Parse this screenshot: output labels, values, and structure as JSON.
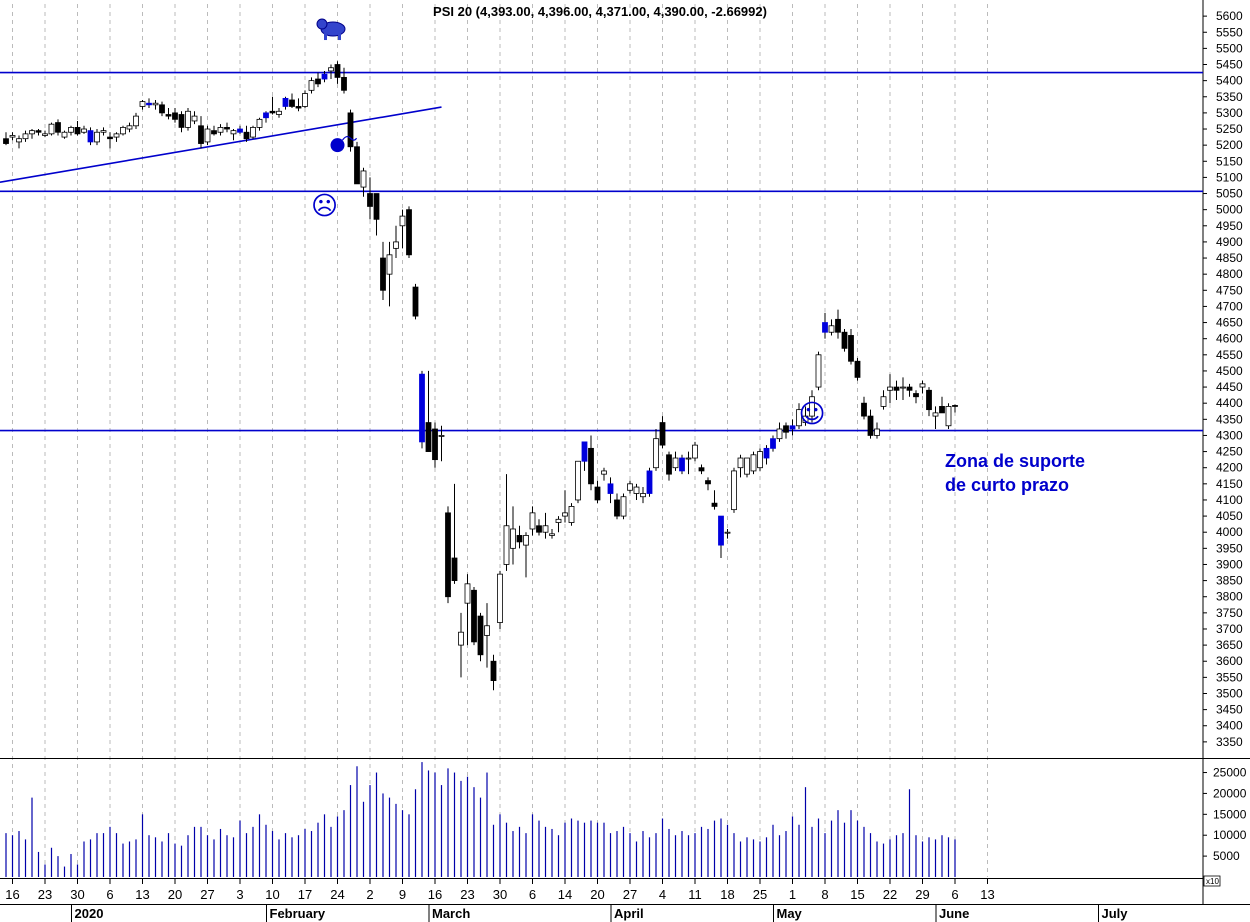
{
  "chart_data": {
    "type": "candlestick",
    "title": "PSI 20 (4,393.00, 4,396.00, 4,371.00, 4,390.00, -2.66992)",
    "price_axis": {
      "ylim": [
        3300,
        5650
      ],
      "ticks": [
        3350,
        3400,
        3450,
        3500,
        3550,
        3600,
        3650,
        3700,
        3750,
        3800,
        3850,
        3900,
        3950,
        4000,
        4050,
        4100,
        4150,
        4200,
        4250,
        4300,
        4350,
        4400,
        4450,
        4500,
        4550,
        4600,
        4650,
        4700,
        4750,
        4800,
        4850,
        4900,
        4950,
        5000,
        5050,
        5100,
        5150,
        5200,
        5250,
        5300,
        5350,
        5400,
        5450,
        5500,
        5550,
        5600
      ]
    },
    "volume_axis": {
      "ylim": [
        0,
        28000
      ],
      "ticks": [
        5000,
        10000,
        15000,
        20000,
        25000
      ],
      "multiplier_label": "x10"
    },
    "x_tick_labels": [
      "16",
      "23",
      "30",
      "6",
      "13",
      "20",
      "27",
      "3",
      "10",
      "17",
      "24",
      "2",
      "9",
      "16",
      "23",
      "30",
      "6",
      "14",
      "20",
      "27",
      "4",
      "11",
      "18",
      "25",
      "1",
      "8",
      "15",
      "22",
      "29",
      "6",
      "13"
    ],
    "month_labels": [
      "2020",
      "February",
      "March",
      "April",
      "May",
      "June",
      "July"
    ],
    "horizontal_levels": [
      5425,
      5057,
      4315
    ],
    "trendline": {
      "from": {
        "bar": 0,
        "price": 5085
      },
      "to": {
        "bar": 67,
        "price": 5318
      }
    },
    "annotations": [
      {
        "text": "Zona de suporte",
        "kind": "label"
      },
      {
        "text": "de curto prazo",
        "kind": "label"
      }
    ],
    "icons": [
      {
        "name": "bear-icon",
        "bar": 50,
        "price": 5560
      },
      {
        "name": "bomb-icon",
        "bar": 51,
        "price": 5200
      },
      {
        "name": "sad-face-icon",
        "bar": 49,
        "price": 5010
      },
      {
        "name": "happy-face-icon",
        "bar": 124,
        "price": 4365
      }
    ],
    "colors": {
      "up": "#ffffff",
      "down": "#000000",
      "highlight": "#0000dd",
      "lines": "#0000cc",
      "volume": "#0000aa",
      "grid": "#bbbbbb"
    },
    "series": [
      {
        "o": 5220,
        "h": 5240,
        "l": 5200,
        "c": 5205,
        "v": 10500
      },
      {
        "o": 5225,
        "h": 5240,
        "l": 5215,
        "c": 5230,
        "v": 10000
      },
      {
        "o": 5210,
        "h": 5230,
        "l": 5190,
        "c": 5220,
        "v": 11000
      },
      {
        "o": 5220,
        "h": 5245,
        "l": 5210,
        "c": 5235,
        "v": 9000
      },
      {
        "o": 5235,
        "h": 5250,
        "l": 5220,
        "c": 5245,
        "v": 19000
      },
      {
        "o": 5245,
        "h": 5250,
        "l": 5230,
        "c": 5240,
        "v": 6000
      },
      {
        "o": 5230,
        "h": 5245,
        "l": 5225,
        "c": 5235,
        "v": 3000
      },
      {
        "o": 5235,
        "h": 5270,
        "l": 5230,
        "c": 5265,
        "v": 7000
      },
      {
        "o": 5270,
        "h": 5280,
        "l": 5230,
        "c": 5240,
        "v": 5000
      },
      {
        "o": 5225,
        "h": 5245,
        "l": 5220,
        "c": 5240,
        "v": 2500
      },
      {
        "o": 5240,
        "h": 5260,
        "l": 5230,
        "c": 5255,
        "v": 5500
      },
      {
        "o": 5255,
        "h": 5275,
        "l": 5230,
        "c": 5235,
        "v": 3000
      },
      {
        "o": 5240,
        "h": 5260,
        "l": 5235,
        "c": 5250,
        "v": 8500
      },
      {
        "o": 5245,
        "h": 5255,
        "l": 5200,
        "c": 5210,
        "v": 9000
      },
      {
        "o": 5210,
        "h": 5250,
        "l": 5200,
        "c": 5240,
        "v": 10500
      },
      {
        "o": 5240,
        "h": 5255,
        "l": 5230,
        "c": 5245,
        "v": 10500
      },
      {
        "o": 5225,
        "h": 5240,
        "l": 5190,
        "c": 5220,
        "v": 12000
      },
      {
        "o": 5225,
        "h": 5240,
        "l": 5210,
        "c": 5235,
        "v": 10500
      },
      {
        "o": 5235,
        "h": 5260,
        "l": 5230,
        "c": 5255,
        "v": 8000
      },
      {
        "o": 5250,
        "h": 5270,
        "l": 5240,
        "c": 5260,
        "v": 8500
      },
      {
        "o": 5260,
        "h": 5300,
        "l": 5250,
        "c": 5290,
        "v": 9000
      },
      {
        "o": 5320,
        "h": 5340,
        "l": 5310,
        "c": 5335,
        "v": 15000
      },
      {
        "o": 5330,
        "h": 5345,
        "l": 5315,
        "c": 5325,
        "v": 10000
      },
      {
        "o": 5325,
        "h": 5340,
        "l": 5310,
        "c": 5330,
        "v": 9500
      },
      {
        "o": 5325,
        "h": 5335,
        "l": 5290,
        "c": 5300,
        "v": 8500
      },
      {
        "o": 5295,
        "h": 5315,
        "l": 5280,
        "c": 5290,
        "v": 10500
      },
      {
        "o": 5300,
        "h": 5315,
        "l": 5270,
        "c": 5280,
        "v": 8000
      },
      {
        "o": 5295,
        "h": 5305,
        "l": 5240,
        "c": 5255,
        "v": 7500
      },
      {
        "o": 5255,
        "h": 5315,
        "l": 5245,
        "c": 5305,
        "v": 10000
      },
      {
        "o": 5275,
        "h": 5305,
        "l": 5265,
        "c": 5290,
        "v": 12000
      },
      {
        "o": 5260,
        "h": 5290,
        "l": 5190,
        "c": 5205,
        "v": 12000
      },
      {
        "o": 5210,
        "h": 5260,
        "l": 5200,
        "c": 5250,
        "v": 10000
      },
      {
        "o": 5245,
        "h": 5260,
        "l": 5230,
        "c": 5235,
        "v": 9000
      },
      {
        "o": 5240,
        "h": 5265,
        "l": 5230,
        "c": 5255,
        "v": 11500
      },
      {
        "o": 5255,
        "h": 5270,
        "l": 5240,
        "c": 5250,
        "v": 10000
      },
      {
        "o": 5235,
        "h": 5250,
        "l": 5215,
        "c": 5245,
        "v": 9500
      },
      {
        "o": 5250,
        "h": 5260,
        "l": 5235,
        "c": 5240,
        "v": 13500
      },
      {
        "o": 5240,
        "h": 5260,
        "l": 5210,
        "c": 5220,
        "v": 10500
      },
      {
        "o": 5225,
        "h": 5260,
        "l": 5220,
        "c": 5255,
        "v": 12000
      },
      {
        "o": 5255,
        "h": 5285,
        "l": 5245,
        "c": 5280,
        "v": 15000
      },
      {
        "o": 5285,
        "h": 5305,
        "l": 5270,
        "c": 5300,
        "v": 12500
      },
      {
        "o": 5305,
        "h": 5350,
        "l": 5295,
        "c": 5300,
        "v": 11000
      },
      {
        "o": 5295,
        "h": 5315,
        "l": 5285,
        "c": 5305,
        "v": 9000
      },
      {
        "o": 5320,
        "h": 5350,
        "l": 5310,
        "c": 5345,
        "v": 10500
      },
      {
        "o": 5340,
        "h": 5360,
        "l": 5315,
        "c": 5320,
        "v": 9500
      },
      {
        "o": 5320,
        "h": 5345,
        "l": 5305,
        "c": 5315,
        "v": 10000
      },
      {
        "o": 5320,
        "h": 5370,
        "l": 5315,
        "c": 5360,
        "v": 11500
      },
      {
        "o": 5370,
        "h": 5410,
        "l": 5360,
        "c": 5400,
        "v": 11000
      },
      {
        "o": 5405,
        "h": 5425,
        "l": 5380,
        "c": 5390,
        "v": 13000
      },
      {
        "o": 5405,
        "h": 5430,
        "l": 5395,
        "c": 5420,
        "v": 15000
      },
      {
        "o": 5430,
        "h": 5450,
        "l": 5405,
        "c": 5440,
        "v": 12000
      },
      {
        "o": 5450,
        "h": 5460,
        "l": 5390,
        "c": 5410,
        "v": 14500
      },
      {
        "o": 5410,
        "h": 5440,
        "l": 5360,
        "c": 5370,
        "v": 16000
      },
      {
        "o": 5300,
        "h": 5310,
        "l": 5180,
        "c": 5195,
        "v": 22000
      },
      {
        "o": 5195,
        "h": 5210,
        "l": 5080,
        "c": 5080,
        "v": 26500
      },
      {
        "o": 5070,
        "h": 5130,
        "l": 5040,
        "c": 5120,
        "v": 18000
      },
      {
        "o": 5050,
        "h": 5100,
        "l": 4970,
        "c": 5010,
        "v": 22000
      },
      {
        "o": 5050,
        "h": 5050,
        "l": 4920,
        "c": 4970,
        "v": 25000
      },
      {
        "o": 4850,
        "h": 4900,
        "l": 4720,
        "c": 4750,
        "v": 20000
      },
      {
        "o": 4800,
        "h": 4900,
        "l": 4700,
        "c": 4860,
        "v": 19000
      },
      {
        "o": 4880,
        "h": 4950,
        "l": 4850,
        "c": 4900,
        "v": 17500
      },
      {
        "o": 4950,
        "h": 5000,
        "l": 4880,
        "c": 4980,
        "v": 16000
      },
      {
        "o": 5000,
        "h": 5010,
        "l": 4850,
        "c": 4860,
        "v": 15000
      },
      {
        "o": 4760,
        "h": 4770,
        "l": 4660,
        "c": 4670,
        "v": 21000
      },
      {
        "o": 4490,
        "h": 4500,
        "l": 4260,
        "c": 4280,
        "v": 27500
      },
      {
        "o": 4340,
        "h": 4500,
        "l": 4250,
        "c": 4250,
        "v": 25500
      },
      {
        "o": 4320,
        "h": 4340,
        "l": 4200,
        "c": 4225,
        "v": 25000
      },
      {
        "o": 4300,
        "h": 4330,
        "l": 4220,
        "c": 4300,
        "v": 22000
      },
      {
        "o": 4060,
        "h": 4080,
        "l": 3780,
        "c": 3800,
        "v": 26000
      },
      {
        "o": 3920,
        "h": 4150,
        "l": 3840,
        "c": 3850,
        "v": 25000
      },
      {
        "o": 3650,
        "h": 3750,
        "l": 3550,
        "c": 3690,
        "v": 23000
      },
      {
        "o": 3780,
        "h": 3870,
        "l": 3650,
        "c": 3840,
        "v": 24000
      },
      {
        "o": 3820,
        "h": 3830,
        "l": 3650,
        "c": 3660,
        "v": 21500
      },
      {
        "o": 3740,
        "h": 3750,
        "l": 3600,
        "c": 3620,
        "v": 19000
      },
      {
        "o": 3680,
        "h": 3780,
        "l": 3580,
        "c": 3710,
        "v": 25000
      },
      {
        "o": 3600,
        "h": 3620,
        "l": 3510,
        "c": 3540,
        "v": 12500
      },
      {
        "o": 3720,
        "h": 3880,
        "l": 3700,
        "c": 3870,
        "v": 15000
      },
      {
        "o": 3900,
        "h": 4180,
        "l": 3880,
        "c": 4020,
        "v": 13000
      },
      {
        "o": 3950,
        "h": 4080,
        "l": 3900,
        "c": 4010,
        "v": 11000
      },
      {
        "o": 3990,
        "h": 4020,
        "l": 3950,
        "c": 3970,
        "v": 12000
      },
      {
        "o": 3960,
        "h": 4000,
        "l": 3860,
        "c": 3990,
        "v": 10500
      },
      {
        "o": 4010,
        "h": 4080,
        "l": 3990,
        "c": 4060,
        "v": 15000
      },
      {
        "o": 4020,
        "h": 4040,
        "l": 3990,
        "c": 4000,
        "v": 13500
      },
      {
        "o": 4000,
        "h": 4060,
        "l": 3980,
        "c": 4020,
        "v": 12000
      },
      {
        "o": 3990,
        "h": 4010,
        "l": 3980,
        "c": 3995,
        "v": 11500
      },
      {
        "o": 4030,
        "h": 4050,
        "l": 4000,
        "c": 4040,
        "v": 10000
      },
      {
        "o": 4050,
        "h": 4130,
        "l": 4030,
        "c": 4060,
        "v": 13000
      },
      {
        "o": 4030,
        "h": 4090,
        "l": 4020,
        "c": 4080,
        "v": 14000
      },
      {
        "o": 4100,
        "h": 4220,
        "l": 4090,
        "c": 4220,
        "v": 13500
      },
      {
        "o": 4220,
        "h": 4280,
        "l": 4190,
        "c": 4280,
        "v": 13000
      },
      {
        "o": 4260,
        "h": 4300,
        "l": 4130,
        "c": 4150,
        "v": 13500
      },
      {
        "o": 4140,
        "h": 4160,
        "l": 4090,
        "c": 4100,
        "v": 13000
      },
      {
        "o": 4180,
        "h": 4200,
        "l": 4160,
        "c": 4190,
        "v": 13000
      },
      {
        "o": 4150,
        "h": 4170,
        "l": 4090,
        "c": 4120,
        "v": 10500
      },
      {
        "o": 4100,
        "h": 4120,
        "l": 4040,
        "c": 4050,
        "v": 11000
      },
      {
        "o": 4050,
        "h": 4120,
        "l": 4040,
        "c": 4110,
        "v": 12000
      },
      {
        "o": 4130,
        "h": 4160,
        "l": 4120,
        "c": 4150,
        "v": 10500
      },
      {
        "o": 4120,
        "h": 4150,
        "l": 4100,
        "c": 4140,
        "v": 8500
      },
      {
        "o": 4110,
        "h": 4140,
        "l": 4090,
        "c": 4120,
        "v": 11000
      },
      {
        "o": 4120,
        "h": 4200,
        "l": 4110,
        "c": 4190,
        "v": 9500
      },
      {
        "o": 4200,
        "h": 4320,
        "l": 4190,
        "c": 4290,
        "v": 10500
      },
      {
        "o": 4340,
        "h": 4360,
        "l": 4260,
        "c": 4270,
        "v": 14000
      },
      {
        "o": 4240,
        "h": 4250,
        "l": 4160,
        "c": 4180,
        "v": 11500
      },
      {
        "o": 4200,
        "h": 4250,
        "l": 4190,
        "c": 4230,
        "v": 10000
      },
      {
        "o": 4230,
        "h": 4240,
        "l": 4180,
        "c": 4190,
        "v": 11000
      },
      {
        "o": 4230,
        "h": 4250,
        "l": 4180,
        "c": 4230,
        "v": 10000
      },
      {
        "o": 4230,
        "h": 4280,
        "l": 4220,
        "c": 4270,
        "v": 10500
      },
      {
        "o": 4200,
        "h": 4210,
        "l": 4180,
        "c": 4190,
        "v": 12000
      },
      {
        "o": 4160,
        "h": 4170,
        "l": 4130,
        "c": 4150,
        "v": 11500
      },
      {
        "o": 4090,
        "h": 4130,
        "l": 4070,
        "c": 4080,
        "v": 13500
      },
      {
        "o": 4050,
        "h": 4050,
        "l": 3920,
        "c": 3960,
        "v": 14000
      },
      {
        "o": 4000,
        "h": 4010,
        "l": 3980,
        "c": 4000,
        "v": 12500
      },
      {
        "o": 4070,
        "h": 4200,
        "l": 4060,
        "c": 4190,
        "v": 10500
      },
      {
        "o": 4200,
        "h": 4240,
        "l": 4170,
        "c": 4230,
        "v": 8500
      },
      {
        "o": 4180,
        "h": 4230,
        "l": 4170,
        "c": 4230,
        "v": 9500
      },
      {
        "o": 4190,
        "h": 4250,
        "l": 4180,
        "c": 4240,
        "v": 9000
      },
      {
        "o": 4200,
        "h": 4260,
        "l": 4190,
        "c": 4250,
        "v": 8500
      },
      {
        "o": 4230,
        "h": 4270,
        "l": 4210,
        "c": 4260,
        "v": 9500
      },
      {
        "o": 4260,
        "h": 4300,
        "l": 4250,
        "c": 4290,
        "v": 12500
      },
      {
        "o": 4290,
        "h": 4340,
        "l": 4280,
        "c": 4320,
        "v": 10000
      },
      {
        "o": 4330,
        "h": 4340,
        "l": 4290,
        "c": 4310,
        "v": 11000
      },
      {
        "o": 4320,
        "h": 4350,
        "l": 4300,
        "c": 4330,
        "v": 14500
      },
      {
        "o": 4330,
        "h": 4400,
        "l": 4320,
        "c": 4380,
        "v": 12500
      },
      {
        "o": 4340,
        "h": 4390,
        "l": 4330,
        "c": 4360,
        "v": 21500
      },
      {
        "o": 4360,
        "h": 4440,
        "l": 4340,
        "c": 4420,
        "v": 12000
      },
      {
        "o": 4450,
        "h": 4560,
        "l": 4440,
        "c": 4550,
        "v": 14000
      },
      {
        "o": 4620,
        "h": 4680,
        "l": 4600,
        "c": 4650,
        "v": 10500
      },
      {
        "o": 4620,
        "h": 4660,
        "l": 4610,
        "c": 4640,
        "v": 13500
      },
      {
        "o": 4660,
        "h": 4690,
        "l": 4600,
        "c": 4620,
        "v": 16000
      },
      {
        "o": 4620,
        "h": 4630,
        "l": 4560,
        "c": 4570,
        "v": 13000
      },
      {
        "o": 4610,
        "h": 4630,
        "l": 4520,
        "c": 4530,
        "v": 16000
      },
      {
        "o": 4530,
        "h": 4540,
        "l": 4470,
        "c": 4480,
        "v": 13500
      },
      {
        "o": 4400,
        "h": 4420,
        "l": 4350,
        "c": 4360,
        "v": 12000
      },
      {
        "o": 4360,
        "h": 4380,
        "l": 4290,
        "c": 4300,
        "v": 10500
      },
      {
        "o": 4300,
        "h": 4340,
        "l": 4290,
        "c": 4320,
        "v": 8500
      },
      {
        "o": 4390,
        "h": 4440,
        "l": 4380,
        "c": 4420,
        "v": 8000
      },
      {
        "o": 4440,
        "h": 4490,
        "l": 4400,
        "c": 4450,
        "v": 9000
      },
      {
        "o": 4450,
        "h": 4470,
        "l": 4410,
        "c": 4440,
        "v": 10000
      },
      {
        "o": 4450,
        "h": 4480,
        "l": 4410,
        "c": 4450,
        "v": 10500
      },
      {
        "o": 4450,
        "h": 4460,
        "l": 4420,
        "c": 4440,
        "v": 21000
      },
      {
        "o": 4430,
        "h": 4440,
        "l": 4400,
        "c": 4420,
        "v": 10000
      },
      {
        "o": 4450,
        "h": 4470,
        "l": 4430,
        "c": 4460,
        "v": 8500
      },
      {
        "o": 4440,
        "h": 4450,
        "l": 4360,
        "c": 4380,
        "v": 9500
      },
      {
        "o": 4360,
        "h": 4390,
        "l": 4320,
        "c": 4370,
        "v": 9000
      },
      {
        "o": 4390,
        "h": 4420,
        "l": 4370,
        "c": 4370,
        "v": 10000
      },
      {
        "o": 4330,
        "h": 4400,
        "l": 4320,
        "c": 4390,
        "v": 9500
      },
      {
        "o": 4393,
        "h": 4396,
        "l": 4371,
        "c": 4390,
        "v": 9000
      }
    ],
    "highlighted_bars": [
      13,
      22,
      36,
      40,
      43,
      49,
      64,
      89,
      93,
      99,
      104,
      110,
      117,
      118,
      121,
      126
    ]
  }
}
